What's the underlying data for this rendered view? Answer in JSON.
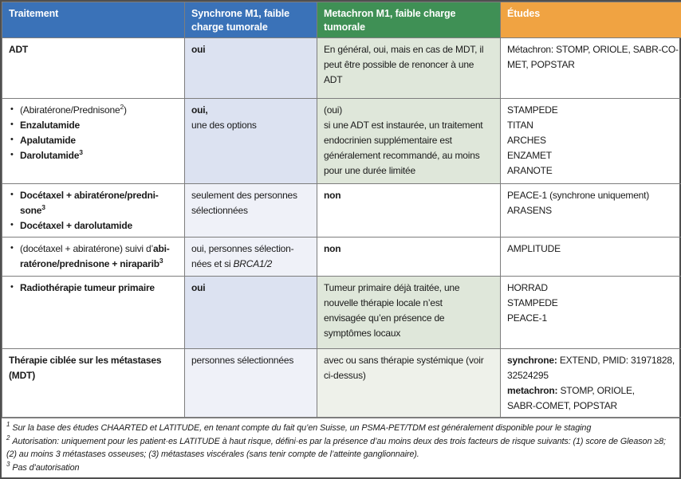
{
  "colors": {
    "header_blue": "#3a72b8",
    "header_green": "#3f9055",
    "header_orange": "#f0a342",
    "header_text": "#ffffff",
    "col2_strong": "#dce2f1",
    "col2_light": "#eff1f8",
    "col3_strong": "#dfe7da",
    "col3_light": "#eef1ea",
    "text": "#1a1a1a",
    "border_inner": "#7d7d7d",
    "border_outer": "#4f4f4f"
  },
  "header": {
    "cells": [
      {
        "label": "Traitement"
      },
      {
        "label": "Synchrone M1, faible charge tumorale"
      },
      {
        "label": "Metachron M1, faible charge tumorale"
      },
      {
        "label": "Études"
      }
    ]
  },
  "rows": [
    {
      "name": "row-adt",
      "cells": [
        {
          "bg": "",
          "blocks": [
            {
              "bullet": false,
              "segs": [
                {
                  "t": "ADT",
                  "b": true
                }
              ]
            }
          ]
        },
        {
          "bg": "col2_strong",
          "blocks": [
            {
              "segs": [
                {
                  "t": "oui",
                  "b": true
                }
              ]
            }
          ]
        },
        {
          "bg": "col3_strong",
          "blocks": [
            {
              "segs": [
                {
                  "t": "En général, oui, mais en cas de MDT, il"
                },
                {
                  "t": "peut être possible de renoncer à une",
                  "br": true
                },
                {
                  "t": "ADT",
                  "br": true
                }
              ]
            }
          ]
        },
        {
          "bg": "",
          "blocks": [
            {
              "segs": [
                {
                  "t": "Métachron: STOMP, ORIOLE, SABR-CO-"
                },
                {
                  "t": "MET, POPSTAR",
                  "br": true
                }
              ]
            }
          ]
        }
      ]
    },
    {
      "name": "row-arpi",
      "cells": [
        {
          "bg": "",
          "blocks": [
            {
              "bullet": true,
              "segs": [
                {
                  "t": "(Abiratérone/Prednisone"
                },
                {
                  "t": "2",
                  "sup": true
                },
                {
                  "t": ")"
                }
              ]
            },
            {
              "bullet": true,
              "segs": [
                {
                  "t": "Enzalutamide",
                  "b": true
                }
              ]
            },
            {
              "bullet": true,
              "segs": [
                {
                  "t": "Apalutamide",
                  "b": true
                }
              ]
            },
            {
              "bullet": true,
              "segs": [
                {
                  "t": "Darolutamide",
                  "b": true
                },
                {
                  "t": "3",
                  "b": true,
                  "sup": true
                }
              ]
            }
          ]
        },
        {
          "bg": "col2_strong",
          "blocks": [
            {
              "segs": [
                {
                  "t": "oui,",
                  "b": true
                },
                {
                  "t": "une des options",
                  "br": true
                }
              ]
            }
          ]
        },
        {
          "bg": "col3_strong",
          "blocks": [
            {
              "segs": [
                {
                  "t": "(oui)"
                },
                {
                  "t": "si une ADT est instaurée, un traitement",
                  "br": true
                },
                {
                  "t": "endocrinien supplémentaire est",
                  "br": true
                },
                {
                  "t": "généralement recommandé, au moins",
                  "br": true
                },
                {
                  "t": "pour une durée limitée",
                  "br": true
                }
              ]
            }
          ]
        },
        {
          "bg": "",
          "blocks": [
            {
              "segs": [
                {
                  "t": "STAMPEDE"
                }
              ]
            },
            {
              "segs": [
                {
                  "t": "TITAN"
                }
              ]
            },
            {
              "segs": [
                {
                  "t": "ARCHES"
                }
              ]
            },
            {
              "segs": [
                {
                  "t": "ENZAMET"
                }
              ]
            },
            {
              "segs": [
                {
                  "t": "ARANOTE"
                }
              ]
            }
          ]
        }
      ]
    },
    {
      "name": "row-docetaxel-combo",
      "cells": [
        {
          "bg": "",
          "blocks": [
            {
              "bullet": true,
              "segs": [
                {
                  "t": "Docétaxel + abiratérone/predni-sone",
                  "b": true
                },
                {
                  "t": "3",
                  "b": true,
                  "sup": true
                }
              ]
            },
            {
              "bullet": true,
              "segs": [
                {
                  "t": "Docétaxel + darolutamide",
                  "b": true
                }
              ]
            }
          ]
        },
        {
          "bg": "col2_light",
          "blocks": [
            {
              "segs": [
                {
                  "t": "seulement des personnes"
                },
                {
                  "t": "sélectionnées",
                  "br": true
                }
              ]
            }
          ]
        },
        {
          "bg": "",
          "blocks": [
            {
              "segs": [
                {
                  "t": "non",
                  "b": true
                }
              ]
            }
          ]
        },
        {
          "bg": "",
          "blocks": [
            {
              "segs": [
                {
                  "t": "PEACE-1 (synchrone uniquement)"
                }
              ]
            },
            {
              "segs": [
                {
                  "t": "ARASENS"
                }
              ]
            }
          ]
        }
      ]
    },
    {
      "name": "row-niraparib",
      "cells": [
        {
          "bg": "",
          "blocks": [
            {
              "bullet": true,
              "segs": [
                {
                  "t": "(docétaxel + abiratérone) suivi d’"
                },
                {
                  "t": "abi-ratérone/prednisone + niraparib",
                  "b": true
                },
                {
                  "t": "3",
                  "b": true,
                  "sup": true
                }
              ]
            }
          ]
        },
        {
          "bg": "col2_light",
          "blocks": [
            {
              "segs": [
                {
                  "t": "oui, personnes sélection-"
                },
                {
                  "t": "nées et si ",
                  "br": true
                },
                {
                  "t": "BRCA1/2",
                  "i": true
                }
              ]
            }
          ]
        },
        {
          "bg": "",
          "blocks": [
            {
              "segs": [
                {
                  "t": "non",
                  "b": true
                }
              ]
            }
          ]
        },
        {
          "bg": "",
          "blocks": [
            {
              "segs": [
                {
                  "t": "AMPLITUDE"
                }
              ]
            }
          ]
        }
      ]
    },
    {
      "name": "row-radiotherapy-primary",
      "cells": [
        {
          "bg": "",
          "blocks": [
            {
              "bullet": true,
              "segs": [
                {
                  "t": "Radiothérapie tumeur primaire",
                  "b": true
                }
              ]
            }
          ]
        },
        {
          "bg": "col2_strong",
          "blocks": [
            {
              "segs": [
                {
                  "t": "oui",
                  "b": true
                }
              ]
            }
          ]
        },
        {
          "bg": "col3_strong",
          "blocks": [
            {
              "segs": [
                {
                  "t": "Tumeur primaire déjà traitée, une"
                },
                {
                  "t": "nouvelle thérapie locale n’est",
                  "br": true
                },
                {
                  "t": "envisagée qu’en présence de",
                  "br": true
                },
                {
                  "t": "symptômes locaux",
                  "br": true
                }
              ]
            }
          ]
        },
        {
          "bg": "",
          "blocks": [
            {
              "segs": [
                {
                  "t": "HORRAD"
                }
              ]
            },
            {
              "segs": [
                {
                  "t": "STAMPEDE"
                }
              ]
            },
            {
              "segs": [
                {
                  "t": "PEACE-1"
                }
              ]
            }
          ]
        }
      ]
    },
    {
      "name": "row-mdt",
      "cells": [
        {
          "bg": "",
          "blocks": [
            {
              "segs": [
                {
                  "t": "Thérapie ciblée sur les métastases",
                  "b": true
                },
                {
                  "t": "(MDT)",
                  "b": true,
                  "br": true
                }
              ]
            }
          ]
        },
        {
          "bg": "col2_light",
          "blocks": [
            {
              "segs": [
                {
                  "t": "personnes sélectionnées"
                }
              ]
            }
          ]
        },
        {
          "bg": "col3_light",
          "blocks": [
            {
              "segs": [
                {
                  "t": "avec ou sans thérapie systémique (voir"
                },
                {
                  "t": "ci-dessus)",
                  "br": true
                }
              ]
            }
          ]
        },
        {
          "bg": "",
          "blocks": [
            {
              "segs": [
                {
                  "t": "synchrone:",
                  "b": true
                },
                {
                  "t": " EXTEND, PMID: 31971828,"
                },
                {
                  "t": "32524295",
                  "br": true
                },
                {
                  "t": "metachron:",
                  "b": true,
                  "br": true
                },
                {
                  "t": " STOMP, ORIOLE,"
                },
                {
                  "t": "SABR-COMET, POPSTAR",
                  "br": true
                }
              ]
            }
          ]
        }
      ]
    }
  ],
  "footnotes": [
    {
      "num": "1",
      "text": "Sur la base des études CHAARTED et LATITUDE, en tenant compte du fait qu’en Suisse, un PSMA-PET/TDM est généralement disponible pour le staging"
    },
    {
      "num": "2",
      "text": "Autorisation: uniquement pour les patient·es LATITUDE à haut risque, défini·es par la présence d’au moins deux des trois facteurs de risque suivants: (1) score de Gleason ≥8; (2) au moins 3 métastases osseuses; (3) métastases viscérales (sans tenir compte de l’atteinte ganglionnaire)."
    },
    {
      "num": "3",
      "text": "Pas d’autorisation"
    }
  ]
}
